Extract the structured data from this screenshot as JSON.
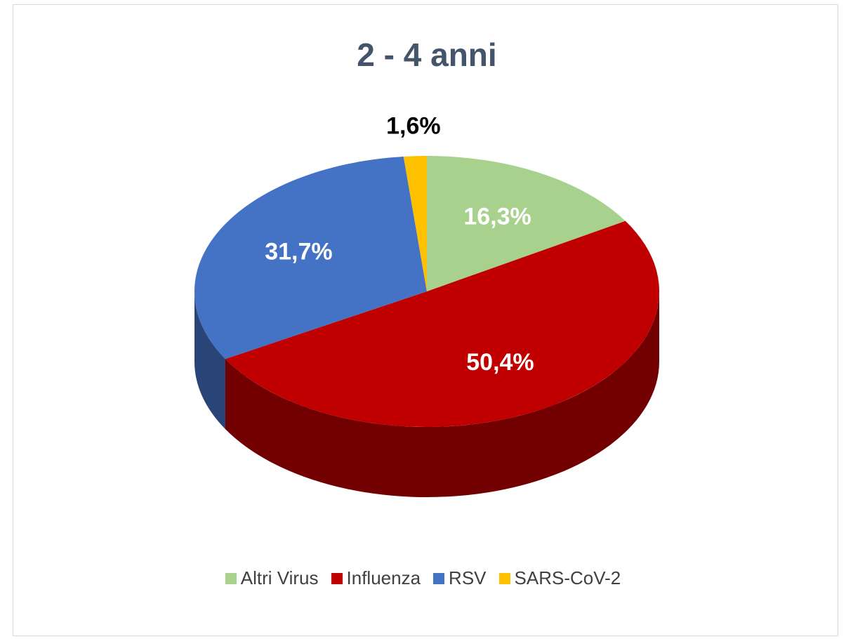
{
  "chart_data": {
    "type": "pie",
    "title": "2 - 4 anni",
    "categories": [
      "Altri Virus",
      "Influenza",
      "RSV",
      "SARS-CoV-2"
    ],
    "values": [
      16.3,
      50.4,
      31.7,
      1.6
    ],
    "value_labels": [
      "16,3%",
      "50,4%",
      "31,7%",
      "1,6%"
    ],
    "colors": [
      "#a9d18e",
      "#c00000",
      "#4472c4",
      "#ffc000"
    ],
    "legend": "bottom"
  }
}
